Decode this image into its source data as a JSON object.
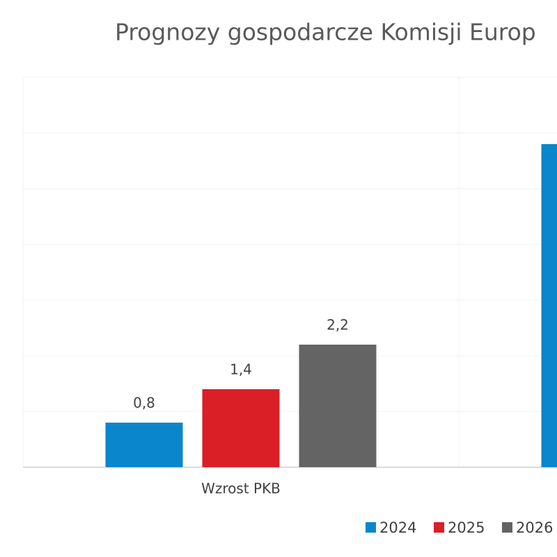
{
  "chart_data": {
    "type": "bar",
    "title": "Prognozy gospodarcze Komisji Europ",
    "categories": [
      "Wzrost PKB",
      null
    ],
    "series": [
      {
        "name": "2024",
        "color": "#0a86cc",
        "values": [
          0.8,
          5.8
        ],
        "value_labels": [
          "0,8",
          null
        ]
      },
      {
        "name": "2025",
        "color": "#da1f26",
        "values": [
          1.4,
          null
        ],
        "value_labels": [
          "1,4",
          null
        ]
      },
      {
        "name": "2026",
        "color": "#646464",
        "values": [
          2.2,
          null
        ],
        "value_labels": [
          "2,2",
          null
        ]
      }
    ],
    "ylim": [
      0,
      7
    ],
    "yticks": [
      0,
      1,
      2,
      3,
      4,
      5,
      6,
      7
    ],
    "grid": true,
    "legend": "bottom"
  }
}
